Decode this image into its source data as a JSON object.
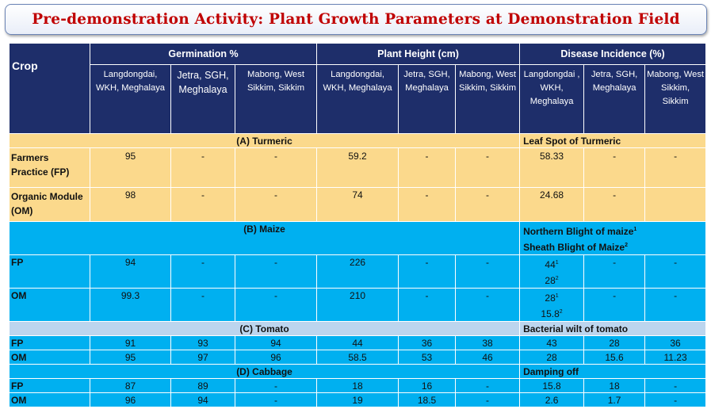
{
  "title": "Pre-demonstration Activity: Plant Growth Parameters at Demonstration Field",
  "header": {
    "crop": "Crop",
    "groups": [
      "Germination %",
      "Plant Height (cm)",
      "Disease Incidence (%)"
    ],
    "germ_locs": [
      "Langdongdai, WKH, Meghalaya",
      "Jetra, SGH, Meghalaya",
      "Mabong, West Sikkim, Sikkim"
    ],
    "height_locs": [
      "Langdongdai, WKH, Meghalaya",
      "Jetra, SGH, Meghalaya",
      "Mabong, West Sikkim, Sikkim"
    ],
    "disease_locs": [
      "Langdongdai , WKH, Meghalaya",
      "Jetra, SGH, Meghalaya",
      "Mabong, West Sikkim, Sikkim"
    ]
  },
  "turmeric": {
    "section": "(A) Turmeric",
    "disease": "Leaf Spot of Turmeric",
    "rows": [
      {
        "crop": "Farmers Practice (FP)",
        "values": [
          "95",
          "-",
          "-",
          "59.2",
          "-",
          "-",
          "58.33",
          "-",
          "-"
        ]
      },
      {
        "crop": "Organic Module (OM)",
        "values": [
          "98",
          "-",
          "-",
          "74",
          "-",
          "-",
          "24.68",
          "-",
          ""
        ]
      }
    ]
  },
  "maize": {
    "section": "(B) Maize",
    "disease1": "Northern Blight of maize",
    "disease1_sup": "1",
    "disease2": "Sheath Blight of Maize",
    "disease2_sup": "2",
    "rows": [
      {
        "crop": "FP",
        "values": [
          "94",
          "-",
          "-",
          "226",
          "-",
          "-"
        ],
        "d1": "44",
        "d1_sup": "1",
        "d2": "28",
        "d2_sup": "2",
        "tail": [
          "-",
          "-"
        ]
      },
      {
        "crop": "OM",
        "values": [
          "99.3",
          "-",
          "-",
          "210",
          "-",
          "-"
        ],
        "d1": "28",
        "d1_sup": "1",
        "d2": "15.8",
        "d2_sup": "2",
        "tail": [
          "-",
          "-"
        ]
      }
    ]
  },
  "tomato": {
    "section": "(C) Tomato",
    "disease": "Bacterial wilt of tomato",
    "rows": [
      {
        "crop": "FP",
        "values": [
          "91",
          "93",
          "94",
          "44",
          "36",
          "38",
          "43",
          "28",
          "36"
        ]
      },
      {
        "crop": "OM",
        "values": [
          "95",
          "97",
          "96",
          "58.5",
          "53",
          "46",
          "28",
          "15.6",
          "11.23"
        ]
      }
    ]
  },
  "cabbage": {
    "section": "(D) Cabbage",
    "disease": "Damping off",
    "rows": [
      {
        "crop": "FP",
        "values": [
          "87",
          "89",
          "-",
          "18",
          "16",
          "-",
          "15.8",
          "18",
          "-"
        ]
      },
      {
        "crop": "OM",
        "values": [
          "96",
          "94",
          "-",
          "19",
          "18.5",
          "-",
          "2.6",
          "1.7",
          "-"
        ]
      }
    ]
  },
  "colors": {
    "title_red": "#c00000",
    "header_navy": "#1e2e6a",
    "turmeric_yellow": "#fbd98c",
    "maize_cyan": "#00b0f0",
    "tomato_light_blue": "#bcd5ee"
  }
}
